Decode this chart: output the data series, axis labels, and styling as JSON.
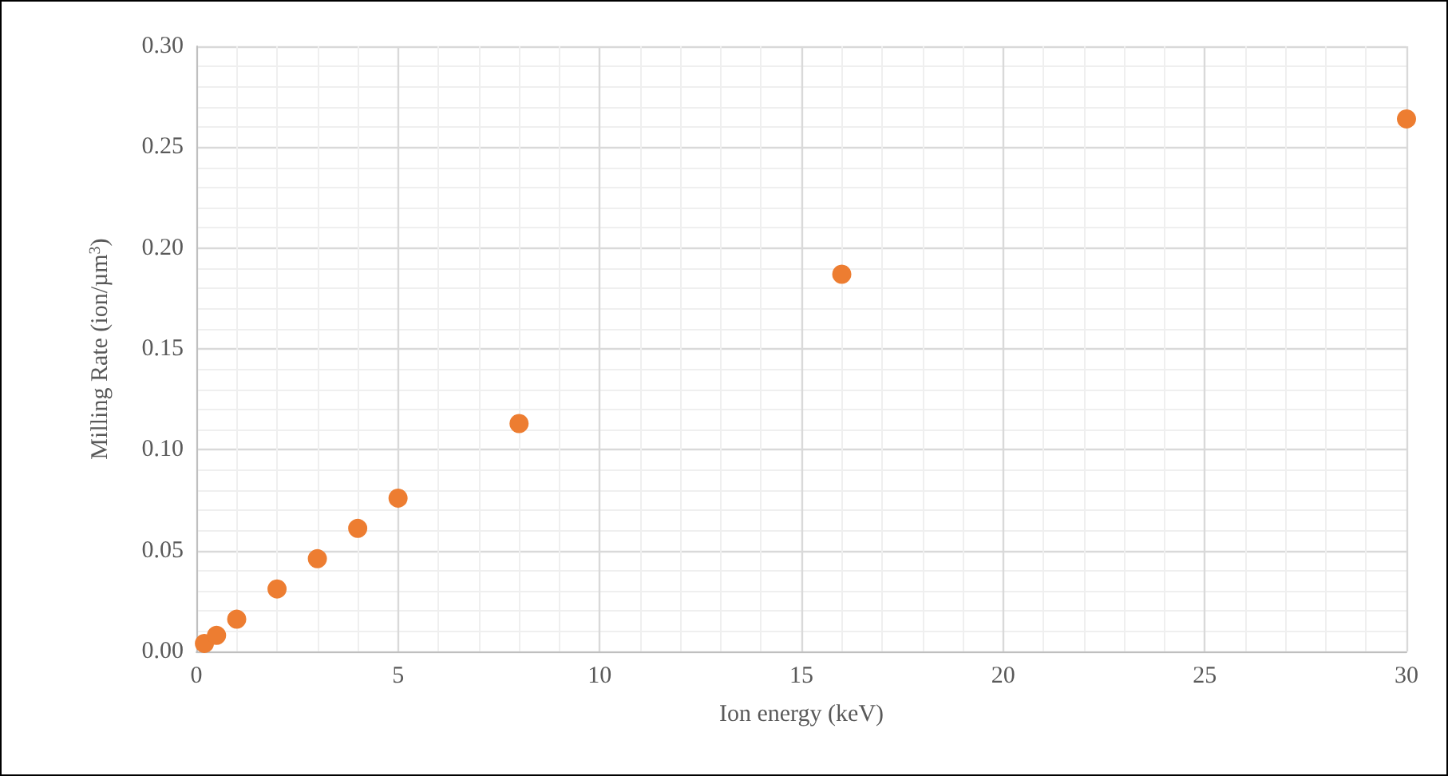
{
  "chart_data": {
    "type": "scatter",
    "xlabel": "Ion energy (keV)",
    "ylabel": "Milling Rate (ion/µm$^{3}$)",
    "x": [
      0.2,
      0.5,
      1,
      2,
      3,
      4,
      5,
      8,
      16,
      30
    ],
    "series": [
      {
        "color": "#ed7d31",
        "values": [
          0.004,
          0.008,
          0.016,
          0.031,
          0.046,
          0.061,
          0.076,
          0.113,
          0.187,
          0.264
        ]
      }
    ],
    "xlim": [
      0,
      30
    ],
    "xticks": [
      0,
      5,
      10,
      15,
      20,
      25,
      30
    ],
    "ylim": [
      0,
      0.3
    ],
    "yticks": [
      {
        "value": 0,
        "label": "0.00"
      },
      {
        "value": 0.05,
        "label": "0.05"
      },
      {
        "value": 0.1,
        "label": "0.10"
      },
      {
        "value": 0.15,
        "label": "0.15"
      },
      {
        "value": 0.2,
        "label": "0.20"
      },
      {
        "value": 0.25,
        "label": "0.25"
      },
      {
        "value": 0.3,
        "label": "0.30"
      }
    ],
    "grid": true,
    "marker": "circle"
  }
}
